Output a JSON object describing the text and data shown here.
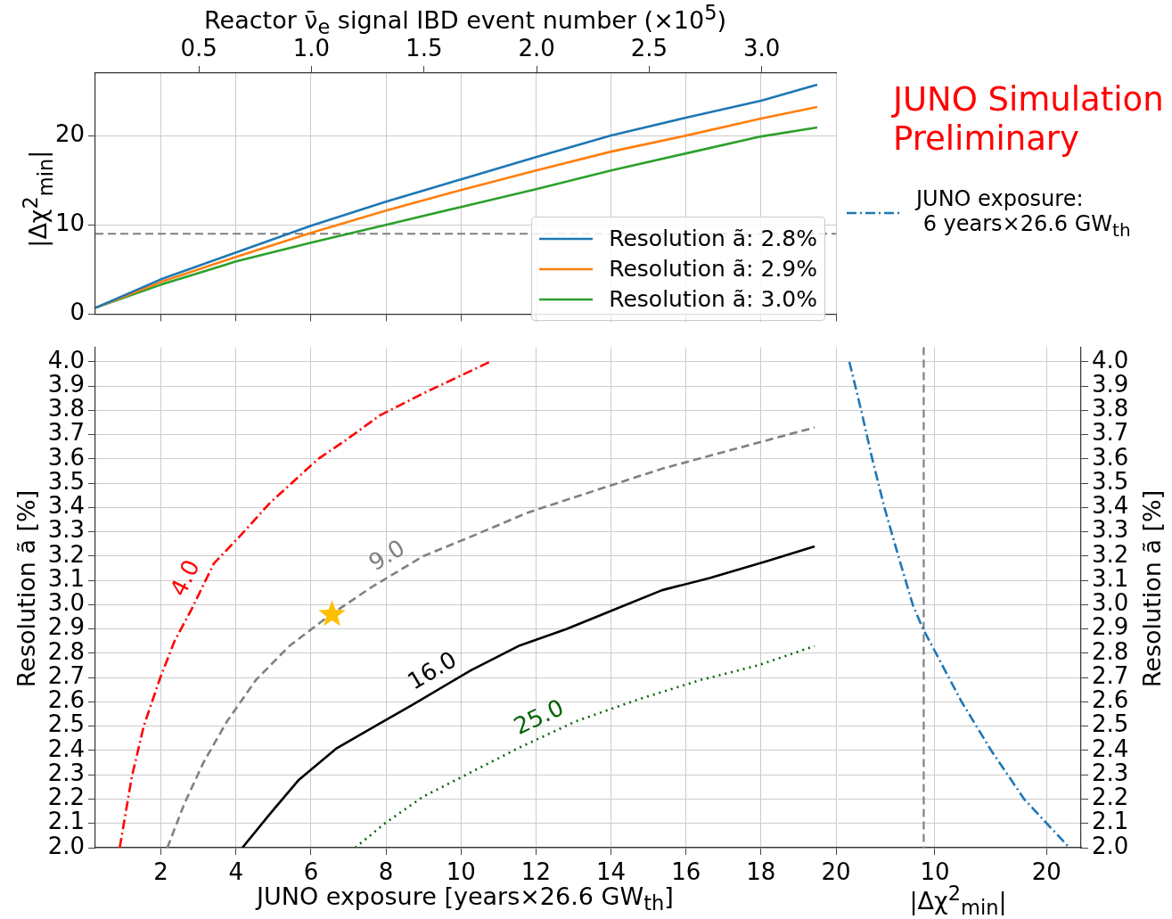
{
  "chart_data": [
    {
      "type": "line",
      "x": [
        0.25,
        2,
        4,
        6,
        8,
        10,
        12,
        14,
        16,
        18,
        19.5
      ],
      "x2label": "Reactor ν̄$_{e}$ signal IBD event number (×10$^{5}$)",
      "ylabel": "|Δχ$^{2}$$_{min}$|",
      "xlim": [
        0.25,
        20
      ],
      "xticks": [
        2,
        4,
        6,
        8,
        10,
        12,
        14,
        16,
        18,
        20
      ],
      "x2lim": [
        0.04,
        3.33
      ],
      "x2ticks": [
        0.5,
        {
          "value": 1,
          "label": "1.0"
        },
        1.5,
        {
          "value": 2,
          "label": "2.0"
        },
        2.5,
        {
          "value": 3,
          "label": "3.0"
        }
      ],
      "ylim": [
        0,
        27
      ],
      "yticks": [
        0,
        10,
        20
      ],
      "tick_labels": "y",
      "grid": true,
      "legend": "bottom right",
      "line_style": "solid",
      "marker": "none",
      "ref_lines": [
        {
          "axis": "y",
          "value": 9,
          "color": "#808080",
          "line_style": "dashed"
        }
      ],
      "series": [
        {
          "name": "Resolution ã: 2.8%",
          "color": "#1f77b4",
          "values": [
            0.7,
            3.9,
            6.9,
            9.9,
            12.6,
            15.1,
            17.6,
            20.0,
            22.0,
            23.9,
            25.7
          ]
        },
        {
          "name": "Resolution ã: 2.9%",
          "color": "#ff7f0e",
          "values": [
            0.7,
            3.6,
            6.4,
            9.1,
            11.6,
            13.9,
            16.1,
            18.2,
            20.0,
            21.9,
            23.2
          ]
        },
        {
          "name": "Resolution ã: 3.0%",
          "color": "#2ca02c",
          "values": [
            0.7,
            3.3,
            5.9,
            8.0,
            10.0,
            12.0,
            14.0,
            16.1,
            18.0,
            19.9,
            20.9
          ]
        }
      ]
    },
    {
      "type": "line",
      "xlabel": "JUNO exposure [years×26.6 GW$_{th}$]",
      "ylabel": "Resolution ã [%]",
      "xlim": [
        0.25,
        20
      ],
      "xticks": [
        2,
        4,
        6,
        8,
        10,
        12,
        14,
        16,
        18,
        20
      ],
      "ylim": [
        2.0,
        4.06
      ],
      "yticks": [
        {
          "value": 2,
          "label": "2.0"
        },
        2.1,
        2.2,
        2.3,
        2.4,
        2.5,
        2.6,
        2.7,
        2.8,
        2.9,
        {
          "value": 3,
          "label": "3.0"
        },
        3.1,
        3.2,
        3.3,
        3.4,
        3.5,
        3.6,
        3.7,
        3.8,
        3.9,
        {
          "value": 4,
          "label": "4.0"
        }
      ],
      "grid": true,
      "legend": false,
      "marker": "none",
      "series": [
        {
          "name": "4.0",
          "color": "#ff0000",
          "line_style": "dashdot",
          "x": [
            0.9,
            1.22,
            1.54,
            1.98,
            2.36,
            2.81,
            3.41,
            4.15,
            4.91,
            5.55,
            6.19,
            6.95,
            7.84,
            8.99,
            10.77
          ],
          "values": [
            2.0,
            2.29,
            2.5,
            2.7,
            2.85,
            2.98,
            3.17,
            3.29,
            3.42,
            3.51,
            3.6,
            3.68,
            3.78,
            3.87,
            4.0
          ]
        },
        {
          "name": "9.0",
          "color": "#808080",
          "line_style": "dashed",
          "x": [
            2.17,
            2.62,
            3.13,
            3.76,
            4.53,
            5.42,
            6.44,
            7.59,
            8.99,
            10.26,
            11.79,
            13.57,
            15.36,
            17.27,
            19.43
          ],
          "values": [
            2.0,
            2.18,
            2.35,
            2.52,
            2.69,
            2.83,
            2.95,
            3.07,
            3.2,
            3.28,
            3.38,
            3.47,
            3.56,
            3.64,
            3.73
          ]
        },
        {
          "name": "16.0",
          "color": "#000000",
          "line_style": "solid",
          "x": [
            4.17,
            4.91,
            5.68,
            6.69,
            7.71,
            8.73,
            10.26,
            11.53,
            12.81,
            14.08,
            15.36,
            16.63,
            18.16,
            19.43
          ],
          "values": [
            2.0,
            2.14,
            2.28,
            2.41,
            2.5,
            2.59,
            2.73,
            2.83,
            2.9,
            2.98,
            3.06,
            3.11,
            3.18,
            3.24
          ]
        },
        {
          "name": "25.0",
          "color": "#006400",
          "line_style": "dotted",
          "x": [
            7.18,
            7.97,
            8.99,
            10.26,
            11.53,
            13.06,
            14.72,
            16.38,
            17.91,
            19.43
          ],
          "values": [
            2.0,
            2.1,
            2.21,
            2.31,
            2.41,
            2.52,
            2.61,
            2.69,
            2.75,
            2.83
          ]
        },
        {
          "type": "scatter",
          "marker": "star",
          "color": "#ffbf00",
          "x": [
            6.56
          ],
          "values": [
            2.96
          ]
        }
      ]
    },
    {
      "type": "line",
      "title": "JUNO Simulation\nPreliminary",
      "xlabel": "|Δχ$^{2}$$_{min}$|",
      "ylabel": "Resolution ã [%]",
      "xlim": [
        1.3,
        23.1
      ],
      "xticks": [
        10,
        20
      ],
      "ylim": [
        2.0,
        4.06
      ],
      "yticks": [
        {
          "value": 2,
          "label": "2.0"
        },
        2.1,
        2.2,
        2.3,
        2.4,
        2.5,
        2.6,
        2.7,
        2.8,
        2.9,
        {
          "value": 3,
          "label": "3.0"
        },
        3.1,
        3.2,
        3.3,
        3.4,
        3.5,
        3.6,
        3.7,
        3.8,
        3.9,
        {
          "value": 4,
          "label": "4.0"
        }
      ],
      "grid": true,
      "legend": "top",
      "marker": "none",
      "ref_lines": [
        {
          "axis": "x",
          "value": 9,
          "color": "#808080",
          "line_style": "dashed"
        }
      ],
      "series": [
        {
          "name": "JUNO exposure:\n 6 years×26.6 GW$_{th}$",
          "color": "#1f77b4",
          "line_style": "dashdot",
          "x": [
            2.34,
            3.4,
            4.39,
            5.48,
            6.73,
            8.02,
            8.94,
            10.1,
            12.4,
            15.05,
            18.0,
            22.05
          ],
          "values": [
            4.0,
            3.8,
            3.6,
            3.4,
            3.2,
            3.0,
            2.9,
            2.8,
            2.6,
            2.4,
            2.2,
            2.0
          ]
        }
      ]
    }
  ]
}
